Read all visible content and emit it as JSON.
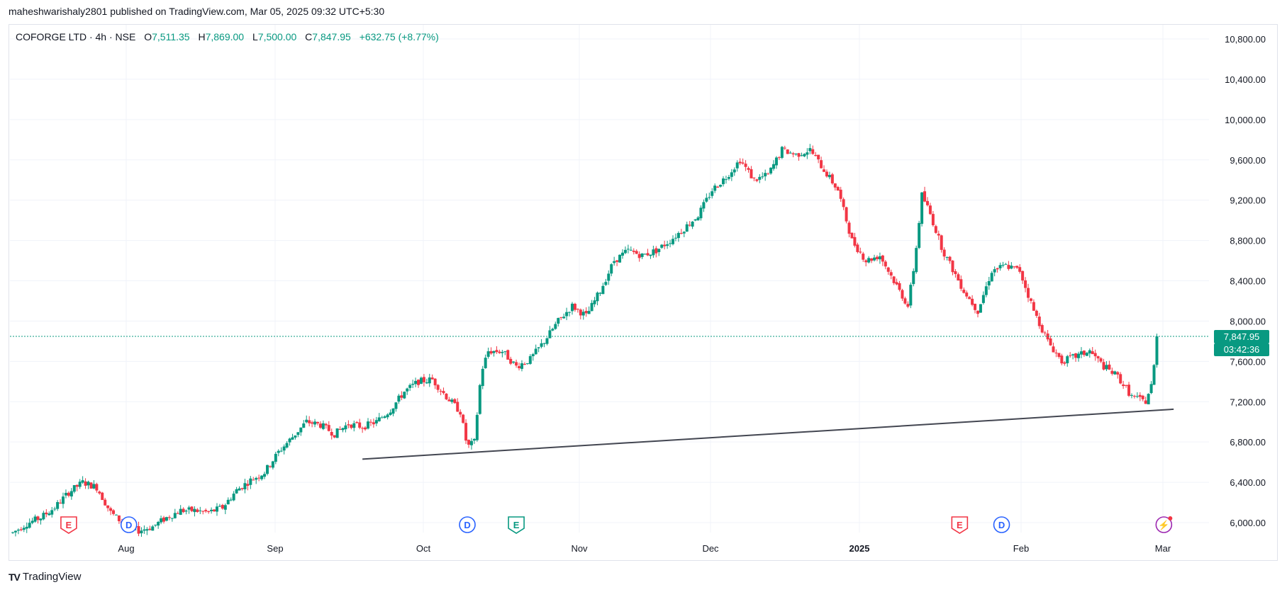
{
  "header": {
    "publish_info": "maheshwarishaly2801 published on TradingView.com, Mar 05, 2025 09:32 UTC+5:30"
  },
  "legend": {
    "symbol": "COFORGE LTD · 4h · NSE",
    "open_label": "O",
    "open": "7,511.35",
    "high_label": "H",
    "high": "7,869.00",
    "low_label": "L",
    "low": "7,500.00",
    "close_label": "C",
    "close": "7,847.95",
    "change": "+632.75 (+8.77%)"
  },
  "price_tag": {
    "last_price": "7,847.95",
    "countdown": "03:42:36"
  },
  "footer": {
    "brand": "TradingView",
    "logo_text": "TV"
  },
  "colors": {
    "up": "#089981",
    "down": "#f23645",
    "trendline": "#434651",
    "grid": "#f0f3fa",
    "earnings": "#f23645",
    "dividend": "#2962ff",
    "event_green": "#089981",
    "flash": "#9c27b0"
  },
  "chart_data": {
    "type": "candlestick",
    "title": "COFORGE LTD · 4h · NSE",
    "y_axis_side": "right",
    "ylim": [
      5900,
      11100
    ],
    "y_ticks": [
      "6,000.00",
      "6,400.00",
      "6,800.00",
      "7,200.00",
      "7,600.00",
      "8,000.00",
      "8,400.00",
      "8,800.00",
      "9,200.00",
      "9,600.00",
      "10,000.00",
      "10,400.00",
      "10,800.00"
    ],
    "y_tick_values": [
      6000,
      6400,
      6800,
      7200,
      7600,
      8000,
      8400,
      8800,
      9200,
      9600,
      10000,
      10400,
      10800
    ],
    "x_ticks": [
      "Aug",
      "Sep",
      "Oct",
      "Nov",
      "Dec",
      "2025",
      "Feb",
      "Mar"
    ],
    "last_price": 7847.95,
    "grid": true,
    "path_anchors": [
      [
        0,
        5900
      ],
      [
        10,
        5990
      ],
      [
        20,
        6050
      ],
      [
        30,
        6150
      ],
      [
        40,
        6300
      ],
      [
        50,
        6400
      ],
      [
        60,
        6350
      ],
      [
        70,
        6100
      ],
      [
        80,
        5980
      ],
      [
        90,
        5920
      ],
      [
        100,
        5960
      ],
      [
        110,
        6050
      ],
      [
        120,
        6120
      ],
      [
        130,
        6120
      ],
      [
        140,
        6100
      ],
      [
        150,
        6150
      ],
      [
        160,
        6320
      ],
      [
        170,
        6420
      ],
      [
        180,
        6500
      ],
      [
        190,
        6700
      ],
      [
        200,
        6850
      ],
      [
        210,
        7000
      ],
      [
        220,
        6970
      ],
      [
        230,
        6880
      ],
      [
        240,
        6980
      ],
      [
        250,
        6950
      ],
      [
        260,
        7000
      ],
      [
        270,
        7120
      ],
      [
        280,
        7300
      ],
      [
        290,
        7400
      ],
      [
        300,
        7420
      ],
      [
        310,
        7250
      ],
      [
        320,
        7100
      ],
      [
        325,
        6750
      ],
      [
        330,
        6800
      ],
      [
        335,
        7500
      ],
      [
        340,
        7700
      ],
      [
        350,
        7700
      ],
      [
        360,
        7550
      ],
      [
        370,
        7620
      ],
      [
        380,
        7800
      ],
      [
        390,
        8000
      ],
      [
        400,
        8150
      ],
      [
        410,
        8050
      ],
      [
        420,
        8300
      ],
      [
        430,
        8600
      ],
      [
        440,
        8700
      ],
      [
        450,
        8650
      ],
      [
        460,
        8700
      ],
      [
        470,
        8800
      ],
      [
        480,
        8920
      ],
      [
        490,
        9050
      ],
      [
        500,
        9300
      ],
      [
        510,
        9430
      ],
      [
        520,
        9600
      ],
      [
        530,
        9400
      ],
      [
        540,
        9450
      ],
      [
        550,
        9700
      ],
      [
        560,
        9650
      ],
      [
        570,
        9700
      ],
      [
        580,
        9500
      ],
      [
        590,
        9300
      ],
      [
        600,
        8800
      ],
      [
        610,
        8600
      ],
      [
        620,
        8650
      ],
      [
        630,
        8400
      ],
      [
        640,
        8150
      ],
      [
        645,
        8600
      ],
      [
        650,
        9250
      ],
      [
        655,
        9100
      ],
      [
        665,
        8700
      ],
      [
        680,
        8300
      ],
      [
        690,
        8100
      ],
      [
        700,
        8500
      ],
      [
        710,
        8550
      ],
      [
        720,
        8500
      ],
      [
        730,
        8100
      ],
      [
        740,
        7800
      ],
      [
        750,
        7600
      ],
      [
        760,
        7650
      ],
      [
        770,
        7700
      ],
      [
        780,
        7550
      ],
      [
        790,
        7450
      ],
      [
        800,
        7250
      ],
      [
        810,
        7200
      ],
      [
        815,
        7400
      ],
      [
        818,
        7848
      ]
    ],
    "trendline": [
      [
        250,
        6630
      ],
      [
        830,
        7125
      ]
    ],
    "events": [
      {
        "type": "earnings",
        "label": "E",
        "x": 40
      },
      {
        "type": "dividend",
        "label": "D",
        "x": 83
      },
      {
        "type": "dividend",
        "label": "D",
        "x": 325
      },
      {
        "type": "event",
        "label": "E",
        "x": 360
      },
      {
        "type": "earnings",
        "label": "E",
        "x": 677
      },
      {
        "type": "dividend",
        "label": "D",
        "x": 707
      },
      {
        "type": "flash",
        "label": "⚡",
        "x": 823
      }
    ]
  }
}
